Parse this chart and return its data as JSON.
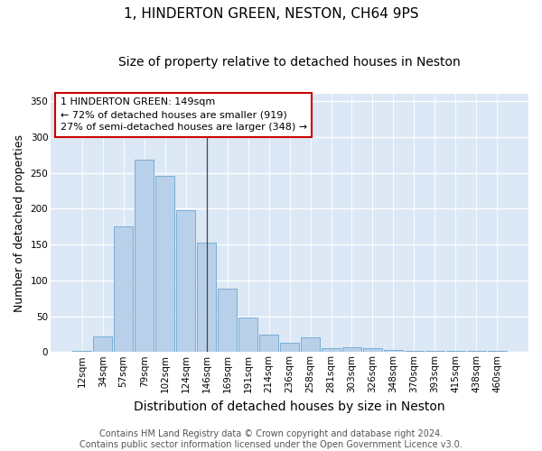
{
  "title": "1, HINDERTON GREEN, NESTON, CH64 9PS",
  "subtitle": "Size of property relative to detached houses in Neston",
  "xlabel": "Distribution of detached houses by size in Neston",
  "ylabel": "Number of detached properties",
  "categories": [
    "12sqm",
    "34sqm",
    "57sqm",
    "79sqm",
    "102sqm",
    "124sqm",
    "146sqm",
    "169sqm",
    "191sqm",
    "214sqm",
    "236sqm",
    "258sqm",
    "281sqm",
    "303sqm",
    "326sqm",
    "348sqm",
    "370sqm",
    "393sqm",
    "415sqm",
    "438sqm",
    "460sqm"
  ],
  "values": [
    2,
    22,
    175,
    268,
    245,
    198,
    152,
    88,
    48,
    24,
    13,
    20,
    5,
    7,
    5,
    3,
    1,
    1,
    1,
    1,
    1
  ],
  "bar_color": "#b8d0ea",
  "bar_edge_color": "#7aadd4",
  "property_line_index": 6,
  "annotation_line1": "1 HINDERTON GREEN: 149sqm",
  "annotation_line2": "← 72% of detached houses are smaller (919)",
  "annotation_line3": "27% of semi-detached houses are larger (348) →",
  "annotation_box_color": "#ffffff",
  "annotation_box_edge_color": "#cc0000",
  "ylim": [
    0,
    360
  ],
  "yticks": [
    0,
    50,
    100,
    150,
    200,
    250,
    300,
    350
  ],
  "bg_color": "#dce8f5",
  "plot_bg_color": "#dce8f5",
  "fig_bg_color": "#ffffff",
  "grid_color": "#ffffff",
  "footer_text": "Contains HM Land Registry data © Crown copyright and database right 2024.\nContains public sector information licensed under the Open Government Licence v3.0.",
  "title_fontsize": 11,
  "subtitle_fontsize": 10,
  "xlabel_fontsize": 10,
  "ylabel_fontsize": 9,
  "tick_fontsize": 7.5,
  "annotation_fontsize": 8,
  "footer_fontsize": 7
}
